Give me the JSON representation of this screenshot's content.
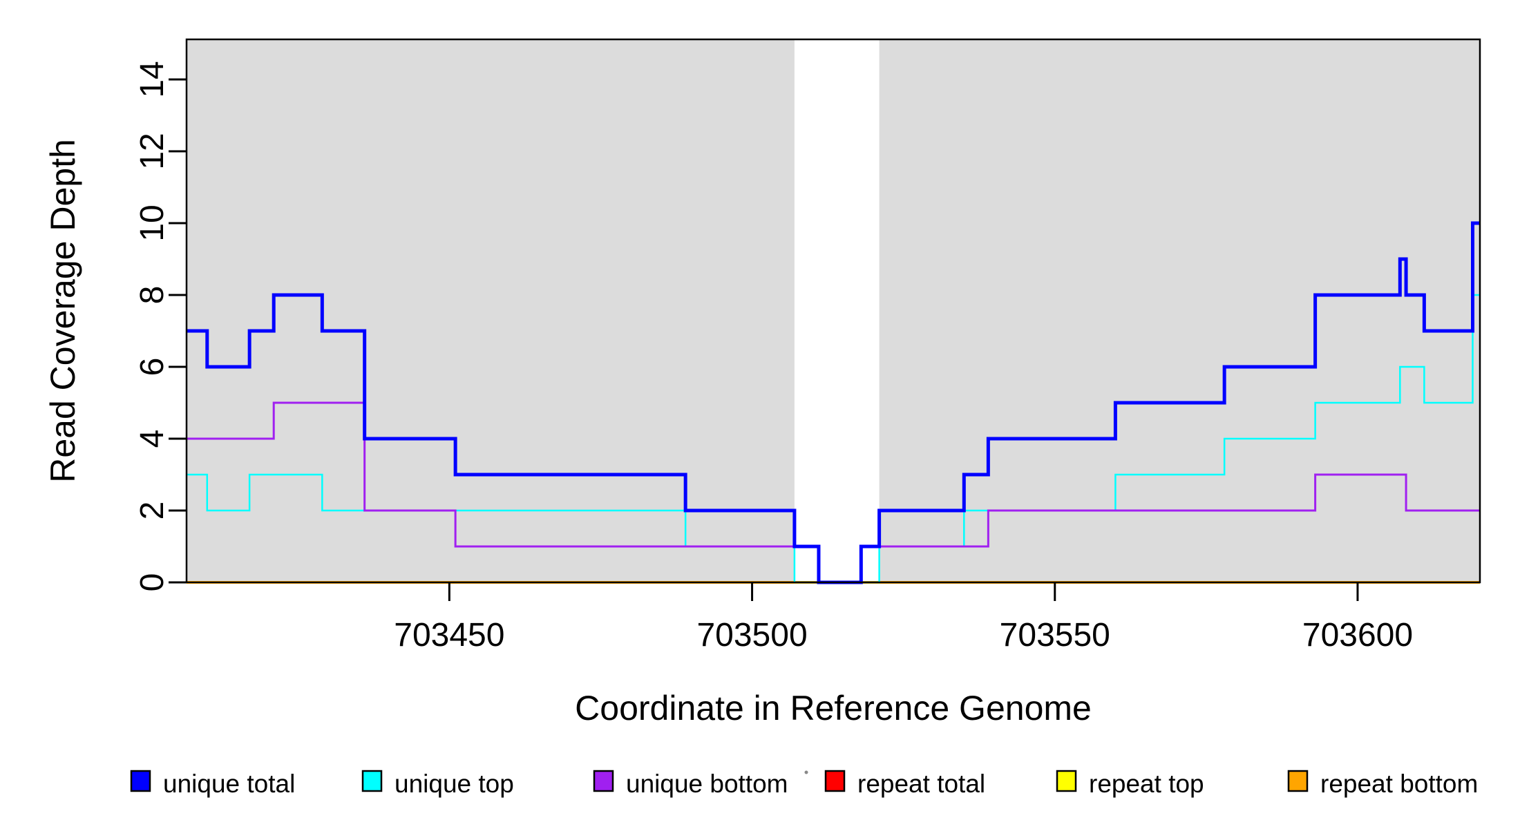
{
  "chart_data": {
    "type": "step-line",
    "title": "",
    "xlabel": "Coordinate in Reference Genome",
    "ylabel": "Read Coverage Depth",
    "xlim": [
      703406.6,
      703620.2
    ],
    "ylim": [
      0,
      15.115
    ],
    "x_ticks": [
      703450,
      703500,
      703550,
      703600
    ],
    "y_ticks": [
      0,
      2,
      4,
      6,
      8,
      10,
      12,
      14
    ],
    "grid": false,
    "background_color": "#FFFFFF",
    "plot_shading": {
      "color": "#DCDCDC",
      "regions": [
        [
          703406.6,
          703507
        ],
        [
          703521,
          703620.2
        ]
      ]
    },
    "uncovered_gap_region": [
      703507,
      703521
    ],
    "series": [
      {
        "name": "repeat total",
        "color": "#FF0000",
        "line_width": 4,
        "breakpoints": [
          [
            703407,
            0
          ]
        ]
      },
      {
        "name": "repeat top",
        "color": "#FFFF00",
        "line_width": 4,
        "breakpoints": [
          [
            703407,
            0
          ]
        ]
      },
      {
        "name": "repeat bottom",
        "color": "#FFA500",
        "line_width": 4,
        "breakpoints": [
          [
            703407,
            0
          ]
        ]
      },
      {
        "name": "unique top",
        "color": "#00FFFF",
        "line_width": 2.5,
        "breakpoints": [
          [
            703407,
            3
          ],
          [
            703410,
            2
          ],
          [
            703417,
            3
          ],
          [
            703429,
            2
          ],
          [
            703489,
            1
          ],
          [
            703507,
            0
          ],
          [
            703521,
            1
          ],
          [
            703535,
            2
          ],
          [
            703560,
            3
          ],
          [
            703578,
            4
          ],
          [
            703593,
            5
          ],
          [
            703607,
            6
          ],
          [
            703611,
            5
          ],
          [
            703619,
            8
          ]
        ]
      },
      {
        "name": "unique bottom",
        "color": "#A020F0",
        "line_width": 3,
        "breakpoints": [
          [
            703407,
            4
          ],
          [
            703421,
            5
          ],
          [
            703436,
            2
          ],
          [
            703451,
            1
          ],
          [
            703511,
            0
          ],
          [
            703518,
            1
          ],
          [
            703539,
            2
          ],
          [
            703593,
            3
          ],
          [
            703608,
            2
          ]
        ]
      },
      {
        "name": "unique total",
        "color": "#0000FF",
        "line_width": 5,
        "breakpoints": [
          [
            703407,
            7
          ],
          [
            703410,
            6
          ],
          [
            703417,
            7
          ],
          [
            703421,
            8
          ],
          [
            703429,
            7
          ],
          [
            703436,
            4
          ],
          [
            703451,
            3
          ],
          [
            703489,
            2
          ],
          [
            703507,
            1
          ],
          [
            703511,
            0
          ],
          [
            703518,
            1
          ],
          [
            703521,
            2
          ],
          [
            703535,
            3
          ],
          [
            703539,
            4
          ],
          [
            703560,
            5
          ],
          [
            703578,
            6
          ],
          [
            703593,
            8
          ],
          [
            703607,
            9
          ],
          [
            703608,
            8
          ],
          [
            703611,
            7
          ],
          [
            703619,
            10
          ]
        ]
      }
    ],
    "legend": {
      "position": "bottom",
      "items": [
        {
          "label": "unique total",
          "color": "#0000FF"
        },
        {
          "label": "unique top",
          "color": "#00FFFF"
        },
        {
          "label": "unique bottom",
          "color": "#A020F0"
        },
        {
          "label": "repeat total",
          "color": "#FF0000"
        },
        {
          "label": "repeat top",
          "color": "#FFFF00"
        },
        {
          "label": "repeat bottom",
          "color": "#FFA500"
        }
      ]
    }
  }
}
